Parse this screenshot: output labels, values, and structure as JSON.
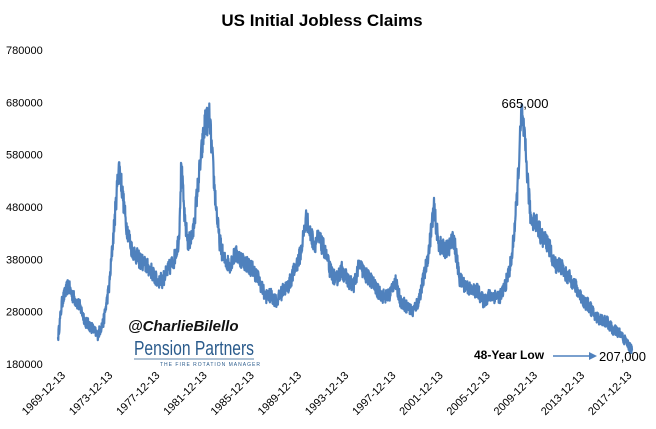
{
  "chart_data": {
    "type": "line",
    "title": "US Initial Jobless Claims",
    "xlabel": "",
    "ylabel": "",
    "ylim": [
      180000,
      780000
    ],
    "yticks": [
      "180000",
      "280000",
      "380000",
      "480000",
      "580000",
      "680000",
      "780000"
    ],
    "ytick_values": [
      180000,
      280000,
      380000,
      480000,
      580000,
      680000,
      780000
    ],
    "xlim": [
      1969.95,
      2018.6
    ],
    "xticks": [
      "1969-12-13",
      "1973-12-13",
      "1977-12-13",
      "1981-12-13",
      "1985-12-13",
      "1989-12-13",
      "1993-12-13",
      "1997-12-13",
      "2001-12-13",
      "2005-12-13",
      "2009-12-13",
      "2013-12-13",
      "2017-12-13"
    ],
    "xtick_values": [
      1969.95,
      1973.95,
      1977.95,
      1981.95,
      1985.95,
      1989.95,
      1993.95,
      1997.95,
      2001.95,
      2005.95,
      2009.95,
      2013.95,
      2017.95
    ],
    "grid": false,
    "series": [
      {
        "name": "Initial Jobless Claims",
        "color": "#4f81bd",
        "x": [
          1969.95,
          1970.3,
          1970.8,
          1971.2,
          1971.8,
          1972.3,
          1972.8,
          1973.3,
          1973.8,
          1974.3,
          1974.8,
          1975.1,
          1975.3,
          1975.7,
          1976.2,
          1976.8,
          1977.3,
          1977.8,
          1978.3,
          1978.8,
          1979.3,
          1979.8,
          1980.2,
          1980.4,
          1980.7,
          1981.0,
          1981.4,
          1981.8,
          1982.1,
          1982.4,
          1982.8,
          1983.2,
          1983.6,
          1984.0,
          1984.5,
          1985.0,
          1985.5,
          1986.0,
          1986.5,
          1987.0,
          1987.5,
          1988.0,
          1988.5,
          1989.0,
          1989.5,
          1990.0,
          1990.5,
          1991.0,
          1991.3,
          1991.7,
          1992.0,
          1992.5,
          1993.0,
          1993.5,
          1994.0,
          1994.5,
          1995.0,
          1995.5,
          1996.0,
          1996.5,
          1997.0,
          1997.5,
          1998.0,
          1998.5,
          1999.0,
          1999.5,
          2000.0,
          2000.5,
          2001.0,
          2001.4,
          2001.8,
          2002.2,
          2002.6,
          2003.0,
          2003.5,
          2004.0,
          2004.5,
          2005.0,
          2005.5,
          2006.0,
          2006.5,
          2007.0,
          2007.5,
          2008.0,
          2008.4,
          2008.8,
          2009.0,
          2009.25,
          2009.6,
          2010.0,
          2010.5,
          2011.0,
          2011.5,
          2012.0,
          2012.5,
          2013.0,
          2013.5,
          2014.0,
          2014.5,
          2015.0,
          2015.5,
          2016.0,
          2016.5,
          2017.0,
          2017.5,
          2018.0,
          2018.3,
          2018.6
        ],
        "values": [
          230000,
          300000,
          330000,
          310000,
          290000,
          260000,
          250000,
          235000,
          260000,
          330000,
          470000,
          560000,
          530000,
          450000,
          400000,
          380000,
          370000,
          360000,
          340000,
          340000,
          360000,
          380000,
          420000,
          560000,
          450000,
          410000,
          430000,
          520000,
          580000,
          640000,
          650000,
          520000,
          420000,
          380000,
          370000,
          390000,
          380000,
          370000,
          360000,
          340000,
          310000,
          310000,
          300000,
          320000,
          330000,
          360000,
          390000,
          460000,
          430000,
          410000,
          420000,
          400000,
          360000,
          340000,
          360000,
          340000,
          330000,
          370000,
          350000,
          340000,
          320000,
          310000,
          310000,
          340000,
          300000,
          290000,
          280000,
          300000,
          350000,
          400000,
          480000,
          410000,
          400000,
          400000,
          420000,
          340000,
          330000,
          320000,
          320000,
          300000,
          310000,
          310000,
          310000,
          340000,
          380000,
          480000,
          560000,
          665000,
          580000,
          460000,
          450000,
          420000,
          410000,
          370000,
          370000,
          350000,
          340000,
          320000,
          300000,
          290000,
          270000,
          265000,
          260000,
          245000,
          240000,
          225000,
          215000,
          207000
        ]
      }
    ],
    "annotations": [
      {
        "text": "665,000",
        "x": 2009.25,
        "y": 665000
      },
      {
        "text": "207,000",
        "x": 2018.6,
        "y": 207000
      }
    ],
    "callout": {
      "text": "48-Year Low"
    }
  },
  "watermark": {
    "handle": "@CharlieBilello",
    "logo_text": "Pension Partners",
    "logo_tagline": "THE FIRE ROTATION MANAGER",
    "logo_color": "#2a5b8c"
  }
}
